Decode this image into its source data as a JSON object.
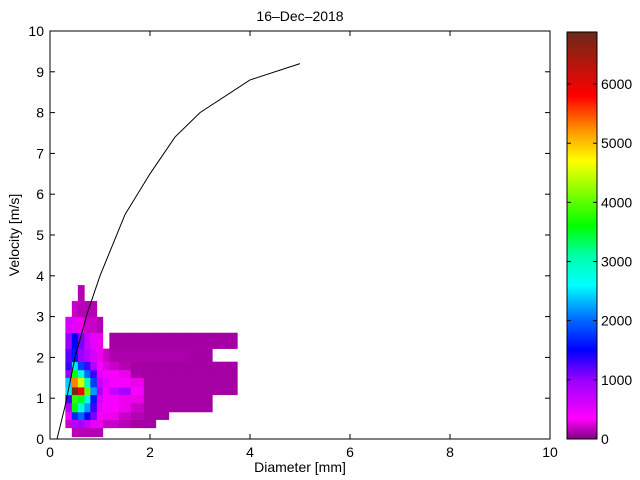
{
  "chart_data": {
    "type": "heatmap",
    "title": "16–Dec–2018",
    "xlabel": "Diameter [mm]",
    "ylabel": "Velocity [m/s]",
    "xlim": [
      0,
      10
    ],
    "ylim": [
      0,
      10
    ],
    "xticks": [
      "0",
      "2",
      "4",
      "6",
      "8",
      "10"
    ],
    "yticks": [
      "0",
      "1",
      "2",
      "3",
      "4",
      "5",
      "6",
      "7",
      "8",
      "9",
      "10"
    ],
    "diameter_edges": [
      0.31,
      0.44,
      0.56,
      0.69,
      0.81,
      0.94,
      1.06,
      1.19,
      1.38,
      1.62,
      1.88,
      2.12,
      2.38,
      2.75,
      3.25,
      3.75
    ],
    "velocity_edges": [
      0.05,
      0.27,
      0.47,
      0.66,
      0.88,
      1.08,
      1.27,
      1.5,
      1.69,
      1.89,
      2.21,
      2.6,
      2.99,
      3.38,
      3.77
    ],
    "counts": [
      [
        0,
        150,
        150,
        150,
        150,
        150,
        0,
        0,
        0,
        0,
        0,
        0,
        0,
        0,
        0
      ],
      [
        200,
        800,
        900,
        700,
        500,
        300,
        200,
        200,
        150,
        100,
        100,
        0,
        0,
        0,
        0
      ],
      [
        400,
        1700,
        2000,
        1500,
        1100,
        400,
        300,
        300,
        200,
        150,
        100,
        100,
        0,
        0,
        0
      ],
      [
        800,
        3600,
        2800,
        2200,
        1300,
        500,
        400,
        400,
        300,
        200,
        100,
        100,
        100,
        100,
        0
      ],
      [
        1300,
        3800,
        3500,
        2800,
        1600,
        600,
        400,
        400,
        300,
        300,
        100,
        100,
        100,
        100,
        0
      ],
      [
        2500,
        6800,
        5900,
        4000,
        2200,
        900,
        400,
        700,
        900,
        400,
        100,
        100,
        100,
        100,
        100
      ],
      [
        2400,
        5300,
        4500,
        3000,
        1800,
        700,
        500,
        400,
        400,
        300,
        100,
        100,
        100,
        100,
        100
      ],
      [
        1000,
        3600,
        2800,
        2000,
        1300,
        500,
        400,
        400,
        300,
        100,
        100,
        100,
        100,
        100,
        100
      ],
      [
        1300,
        2500,
        1800,
        1300,
        800,
        400,
        250,
        200,
        150,
        100,
        100,
        100,
        100,
        100,
        100
      ],
      [
        1200,
        1600,
        1000,
        800,
        600,
        300,
        200,
        120,
        120,
        120,
        120,
        120,
        120,
        100,
        0
      ],
      [
        1000,
        1500,
        1100,
        700,
        500,
        300,
        0,
        100,
        100,
        100,
        100,
        100,
        100,
        100,
        100
      ],
      [
        600,
        500,
        300,
        200,
        200,
        150,
        0,
        0,
        0,
        0,
        0,
        0,
        0,
        0,
        0
      ],
      [
        0,
        200,
        150,
        150,
        150,
        0,
        0,
        0,
        0,
        0,
        0,
        0,
        0,
        0,
        0
      ],
      [
        0,
        0,
        150,
        0,
        0,
        0,
        0,
        0,
        0,
        0,
        0,
        0,
        0,
        0,
        0
      ]
    ],
    "fall_speed_curve": {
      "x": [
        0.14,
        0.3,
        0.5,
        0.75,
        1,
        1.5,
        2,
        2.5,
        3,
        4,
        5
      ],
      "y": [
        0,
        0.8,
        2.0,
        3.1,
        4.0,
        5.5,
        6.5,
        7.4,
        8.0,
        8.8,
        9.2
      ]
    },
    "colorbar": {
      "range": [
        0,
        6880
      ],
      "ticks": [
        "0",
        "1000",
        "2000",
        "3000",
        "4000",
        "5000",
        "6000"
      ],
      "tick_values": [
        0,
        1000,
        2000,
        3000,
        4000,
        5000,
        6000
      ],
      "colormap": [
        [
          0,
          "#800080"
        ],
        [
          350,
          "#ff00ff"
        ],
        [
          1000,
          "#9900ff"
        ],
        [
          1500,
          "#0000ff"
        ],
        [
          2000,
          "#0066ff"
        ],
        [
          2600,
          "#00ffff"
        ],
        [
          3100,
          "#00ffaa"
        ],
        [
          3600,
          "#00ff00"
        ],
        [
          4700,
          "#ffff00"
        ],
        [
          5200,
          "#ff9900"
        ],
        [
          5800,
          "#ff0000"
        ],
        [
          6880,
          "#6b2a1a"
        ]
      ]
    }
  }
}
